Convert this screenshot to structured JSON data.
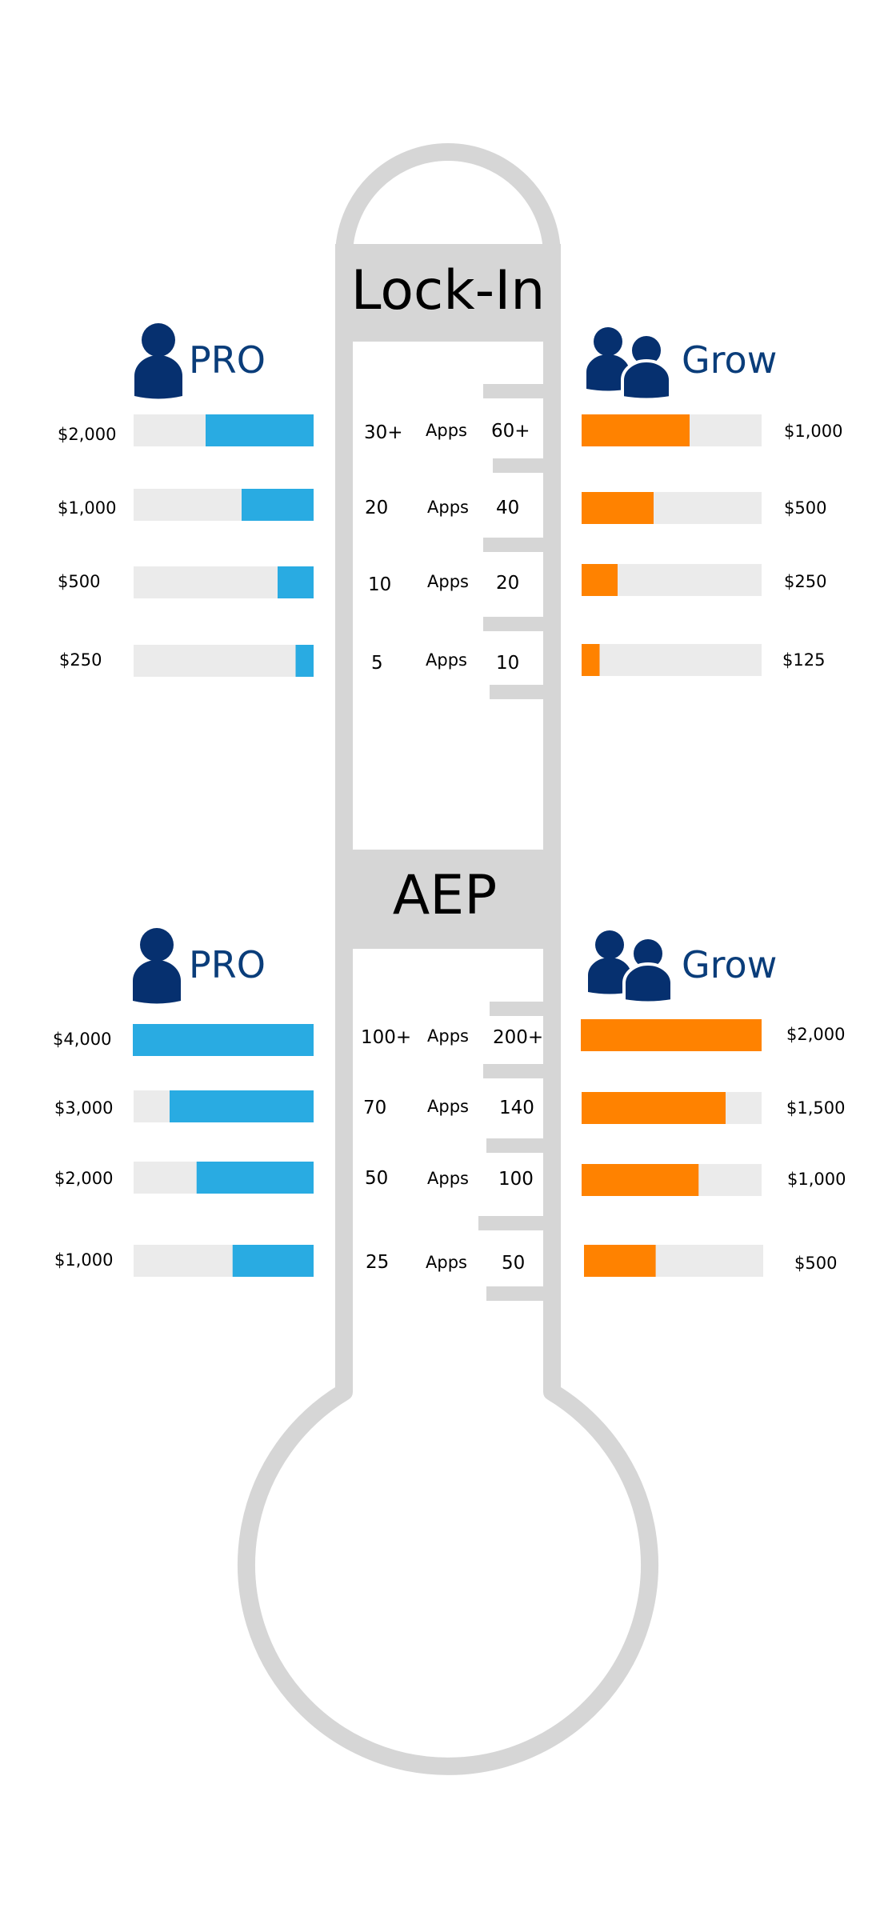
{
  "colors": {
    "frame": "#d6d6d6",
    "track": "#ebebeb",
    "pro_bar": "#29abe2",
    "grow_bar": "#ff8200",
    "plan_label": "#0a3d7a",
    "icon": "#06306f"
  },
  "chart_data": [
    {
      "type": "bar",
      "section": "Lock-In",
      "title": "Lock-In",
      "apps_word": "Apps",
      "xlim": [
        0,
        1
      ],
      "pro": {
        "name": "PRO",
        "icon": "single-user-icon",
        "fill_fraction": [
          0.6,
          0.4,
          0.2,
          0.1
        ],
        "prices": [
          "$2,000",
          "$1,000",
          "$500",
          "$250"
        ],
        "apps": [
          "30+",
          "20",
          "10",
          "5"
        ]
      },
      "grow": {
        "name": "Grow",
        "icon": "two-users-icon",
        "fill_fraction": [
          0.6,
          0.4,
          0.2,
          0.1
        ],
        "prices": [
          "$1,000",
          "$500",
          "$250",
          "$125"
        ],
        "apps": [
          "60+",
          "40",
          "20",
          "10"
        ]
      }
    },
    {
      "type": "bar",
      "section": "AEP",
      "title": "AEP",
      "apps_word": "Apps",
      "xlim": [
        0,
        1
      ],
      "pro": {
        "name": "PRO",
        "icon": "single-user-icon",
        "fill_fraction": [
          1.0,
          0.8,
          0.65,
          0.45
        ],
        "prices": [
          "$4,000",
          "$3,000",
          "$2,000",
          "$1,000"
        ],
        "apps": [
          "100+",
          "70",
          "50",
          "25"
        ]
      },
      "grow": {
        "name": "Grow",
        "icon": "two-users-icon",
        "fill_fraction": [
          1.0,
          0.8,
          0.65,
          0.4
        ],
        "prices": [
          "$2,000",
          "$1,500",
          "$1,000",
          "$500"
        ],
        "apps": [
          "200+",
          "140",
          "100",
          "50"
        ]
      }
    }
  ]
}
